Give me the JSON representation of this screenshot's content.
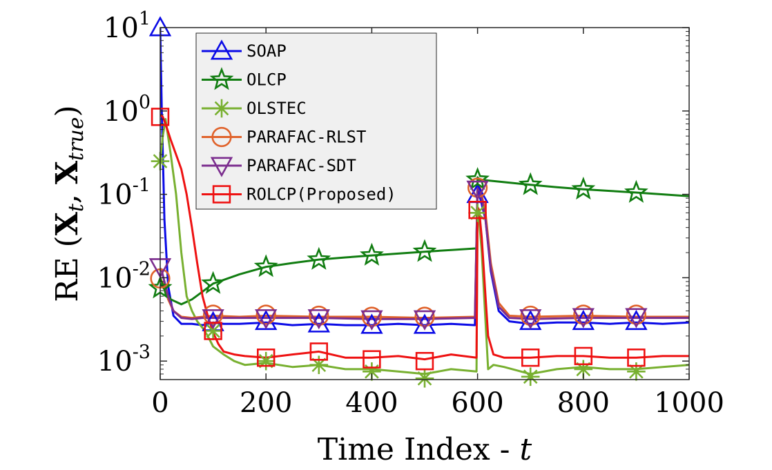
{
  "chart_data": {
    "type": "line",
    "title": "",
    "xlabel_prefix": "Time Index - ",
    "xlabel_var": "t",
    "ylabel_prefix": "RE (",
    "ylabel_x1": "X",
    "ylabel_sub1": "t",
    "ylabel_sep": ", ",
    "ylabel_x2": "X",
    "ylabel_sub2": "true",
    "ylabel_suffix": ")",
    "xlim": [
      0,
      1000
    ],
    "ylim": [
      0.0006,
      10
    ],
    "yscale": "log",
    "x_ticks": [
      0,
      200,
      400,
      600,
      800,
      1000
    ],
    "x_tick_labels": [
      "0",
      "200",
      "400",
      "600",
      "800",
      "1000"
    ],
    "y_ticks": [
      0.001,
      0.01,
      0.1,
      1,
      10
    ],
    "y_tick_labels": [
      {
        "base": "10",
        "exp": "-3"
      },
      {
        "base": "10",
        "exp": "-2"
      },
      {
        "base": "10",
        "exp": "-1"
      },
      {
        "base": "10",
        "exp": "0"
      },
      {
        "base": "10",
        "exp": "1"
      }
    ],
    "grid": false,
    "legend_position": "top-left",
    "series": [
      {
        "name": "SOAP",
        "color": "#0a0ae6",
        "marker": "triangle-up",
        "x": [
          0,
          3,
          8,
          15,
          25,
          40,
          60,
          80,
          100,
          120,
          150,
          200,
          250,
          300,
          350,
          400,
          450,
          500,
          550,
          595,
          600,
          605,
          615,
          625,
          640,
          660,
          700,
          750,
          800,
          850,
          900,
          950,
          1000
        ],
        "y": [
          10,
          1.0,
          0.05,
          0.008,
          0.0035,
          0.0028,
          0.0028,
          0.0027,
          0.0029,
          0.0028,
          0.0028,
          0.0029,
          0.0027,
          0.0028,
          0.0027,
          0.0027,
          0.0028,
          0.0027,
          0.0028,
          0.0027,
          0.13,
          0.09,
          0.05,
          0.012,
          0.004,
          0.003,
          0.0028,
          0.0029,
          0.0029,
          0.0028,
          0.0029,
          0.0028,
          0.0029
        ],
        "markers_x": [
          0,
          100,
          200,
          300,
          400,
          500,
          600,
          700,
          800,
          900
        ],
        "markers_y": [
          10,
          0.0029,
          0.003,
          0.0028,
          0.0027,
          0.0027,
          0.1,
          0.003,
          0.003,
          0.003
        ]
      },
      {
        "name": "OLCP",
        "color": "#117d11",
        "marker": "star",
        "x": [
          0,
          3,
          10,
          20,
          40,
          60,
          80,
          100,
          150,
          200,
          250,
          300,
          350,
          400,
          450,
          500,
          550,
          598,
          600,
          603,
          650,
          700,
          750,
          800,
          850,
          900,
          950,
          1000
        ],
        "y": [
          0.0085,
          0.008,
          0.007,
          0.0055,
          0.0048,
          0.0055,
          0.0068,
          0.0085,
          0.011,
          0.0135,
          0.015,
          0.0165,
          0.0175,
          0.0185,
          0.0195,
          0.0205,
          0.0215,
          0.0225,
          0.16,
          0.15,
          0.14,
          0.13,
          0.122,
          0.115,
          0.11,
          0.105,
          0.1,
          0.095
        ],
        "markers_x": [
          0,
          100,
          200,
          300,
          400,
          500,
          600,
          700,
          800,
          900
        ],
        "markers_y": [
          0.0075,
          0.0085,
          0.0135,
          0.0165,
          0.0185,
          0.0205,
          0.15,
          0.13,
          0.115,
          0.105
        ]
      },
      {
        "name": "OLSTEC",
        "color": "#78b030",
        "marker": "asterisk",
        "x": [
          0,
          5,
          10,
          20,
          30,
          40,
          50,
          60,
          70,
          80,
          90,
          100,
          120,
          140,
          160,
          200,
          250,
          300,
          350,
          400,
          450,
          500,
          550,
          598,
          600,
          603,
          608,
          615,
          620,
          630,
          650,
          700,
          750,
          800,
          850,
          900,
          950,
          1000
        ],
        "y": [
          0.25,
          0.5,
          0.8,
          0.3,
          0.1,
          0.02,
          0.006,
          0.004,
          0.003,
          0.0025,
          0.002,
          0.0015,
          0.0012,
          0.001,
          0.0009,
          0.00095,
          0.00085,
          0.0009,
          0.0008,
          0.0008,
          0.00075,
          0.0007,
          0.0008,
          0.00075,
          0.06,
          0.05,
          0.02,
          0.003,
          0.0008,
          0.0009,
          0.00085,
          0.0007,
          0.0008,
          0.00085,
          0.0008,
          0.0008,
          0.00085,
          0.0009
        ],
        "markers_x": [
          0,
          100,
          200,
          300,
          400,
          500,
          600,
          700,
          800,
          900
        ],
        "markers_y": [
          0.25,
          0.0023,
          0.001,
          0.0009,
          0.00075,
          0.00062,
          0.06,
          0.00065,
          0.0008,
          0.00075
        ]
      },
      {
        "name": "PARAFAC-RLST",
        "color": "#e0622a",
        "marker": "circle",
        "x": [
          0,
          3,
          8,
          15,
          25,
          40,
          60,
          80,
          100,
          150,
          200,
          300,
          400,
          500,
          595,
          600,
          605,
          615,
          625,
          640,
          660,
          700,
          800,
          900,
          1000
        ],
        "y": [
          0.01,
          0.009,
          0.008,
          0.0055,
          0.004,
          0.0034,
          0.0033,
          0.0034,
          0.0035,
          0.0034,
          0.0035,
          0.0034,
          0.0034,
          0.0033,
          0.0034,
          0.13,
          0.12,
          0.06,
          0.015,
          0.005,
          0.0035,
          0.0034,
          0.0035,
          0.0034,
          0.0034
        ],
        "markers_x": [
          0,
          100,
          200,
          300,
          400,
          500,
          600,
          700,
          800,
          900
        ],
        "markers_y": [
          0.0098,
          0.0036,
          0.0036,
          0.0035,
          0.0034,
          0.0034,
          0.12,
          0.0035,
          0.0036,
          0.0036
        ]
      },
      {
        "name": "PARAFAC-SDT",
        "color": "#7b2d8e",
        "marker": "triangle-down",
        "x": [
          0,
          3,
          8,
          15,
          25,
          40,
          60,
          80,
          100,
          150,
          200,
          300,
          400,
          500,
          595,
          600,
          605,
          615,
          625,
          640,
          660,
          700,
          800,
          900,
          1000
        ],
        "y": [
          0.013,
          0.012,
          0.009,
          0.006,
          0.004,
          0.0033,
          0.0032,
          0.0033,
          0.0033,
          0.0033,
          0.0033,
          0.0033,
          0.0032,
          0.0032,
          0.0033,
          0.12,
          0.11,
          0.05,
          0.013,
          0.0045,
          0.0033,
          0.0032,
          0.0033,
          0.0033,
          0.0033
        ],
        "markers_x": [
          0,
          100,
          200,
          300,
          400,
          500,
          600,
          700,
          800,
          900
        ],
        "markers_y": [
          0.0135,
          0.0033,
          0.0033,
          0.0033,
          0.0032,
          0.0032,
          0.115,
          0.0033,
          0.0034,
          0.0034
        ]
      },
      {
        "name": "ROLCP(Proposed)",
        "color": "#ee1111",
        "marker": "square",
        "x": [
          0,
          5,
          10,
          20,
          30,
          40,
          50,
          60,
          70,
          80,
          90,
          100,
          110,
          120,
          140,
          160,
          200,
          250,
          300,
          350,
          400,
          450,
          500,
          550,
          598,
          600,
          603,
          608,
          615,
          620,
          630,
          650,
          700,
          750,
          800,
          850,
          900,
          950,
          1000
        ],
        "y": [
          0.9,
          0.85,
          0.7,
          0.45,
          0.3,
          0.2,
          0.1,
          0.04,
          0.015,
          0.006,
          0.0035,
          0.0022,
          0.0016,
          0.0013,
          0.0012,
          0.00115,
          0.0011,
          0.0012,
          0.0013,
          0.0011,
          0.0011,
          0.00115,
          0.00105,
          0.0012,
          0.0011,
          0.07,
          0.065,
          0.03,
          0.006,
          0.002,
          0.0012,
          0.0011,
          0.0011,
          0.00115,
          0.00115,
          0.0011,
          0.0011,
          0.00115,
          0.00115
        ],
        "markers_x": [
          0,
          100,
          200,
          300,
          400,
          500,
          600,
          700,
          800,
          900
        ],
        "markers_y": [
          0.85,
          0.0023,
          0.0011,
          0.0013,
          0.00105,
          0.001,
          0.065,
          0.0011,
          0.00115,
          0.0011
        ]
      }
    ]
  }
}
